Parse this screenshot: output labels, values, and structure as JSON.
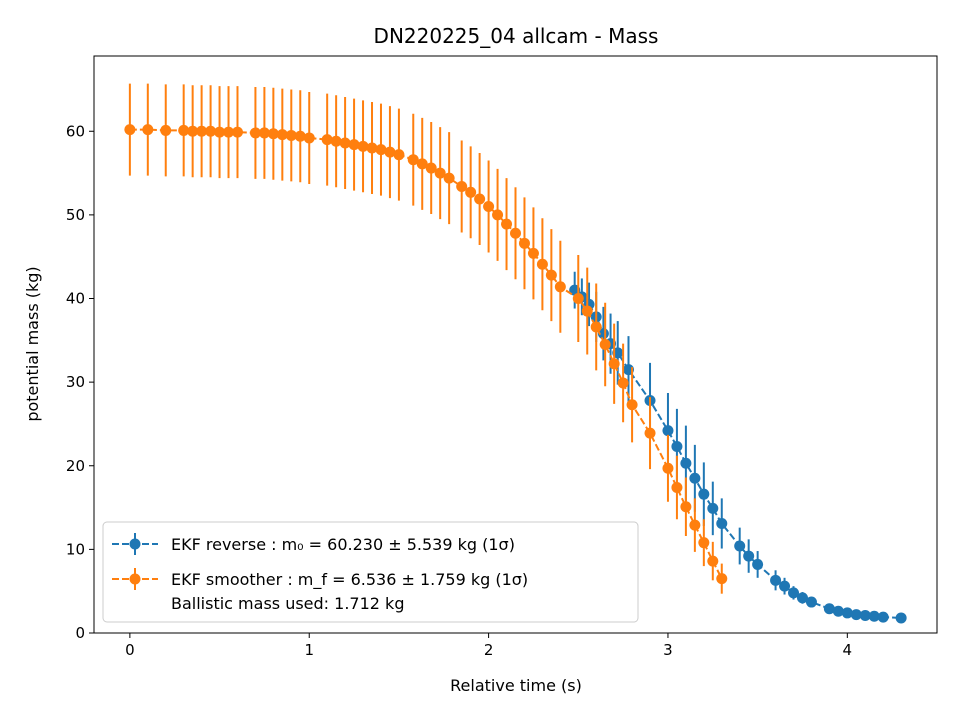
{
  "chart_data": {
    "type": "scatter",
    "title": "DN220225_04 allcam - Mass",
    "xlabel": "Relative time (s)",
    "ylabel": "potential mass (kg)",
    "xlim": [
      -0.2,
      4.5
    ],
    "ylim": [
      0,
      69
    ],
    "xticks": [
      0,
      1,
      2,
      3,
      4
    ],
    "yticks": [
      0,
      10,
      20,
      30,
      40,
      50,
      60
    ],
    "legend_position": "lower-left",
    "series": [
      {
        "legend_label": "EKF reverse : m₀ =  60.230 ± 5.539 kg (1σ)",
        "color": "#1f77b4",
        "linestyle": "dashed",
        "points": [
          [
            2.48,
            41.0,
            2.2
          ],
          [
            2.52,
            40.2,
            2.2
          ],
          [
            2.56,
            39.3,
            2.6
          ],
          [
            2.6,
            37.8,
            3.0
          ],
          [
            2.64,
            35.8,
            3.2
          ],
          [
            2.68,
            34.6,
            3.6
          ],
          [
            2.72,
            33.5,
            3.8
          ],
          [
            2.78,
            31.5,
            4.0
          ],
          [
            2.9,
            27.8,
            4.5
          ],
          [
            3.0,
            24.2,
            4.5
          ],
          [
            3.05,
            22.3,
            4.5
          ],
          [
            3.1,
            20.3,
            4.5
          ],
          [
            3.15,
            18.5,
            4.0
          ],
          [
            3.2,
            16.6,
            3.8
          ],
          [
            3.25,
            14.9,
            3.2
          ],
          [
            3.3,
            13.1,
            3.0
          ],
          [
            3.4,
            10.4,
            2.2
          ],
          [
            3.45,
            9.2,
            2.0
          ],
          [
            3.5,
            8.2,
            1.6
          ],
          [
            3.6,
            6.3,
            1.2
          ],
          [
            3.65,
            5.6,
            1.0
          ],
          [
            3.7,
            4.8,
            0.8
          ],
          [
            3.75,
            4.2,
            0.7
          ],
          [
            3.8,
            3.7,
            0.6
          ],
          [
            3.9,
            2.9,
            0.5
          ],
          [
            3.95,
            2.6,
            0.4
          ],
          [
            4.0,
            2.4,
            0.4
          ],
          [
            4.05,
            2.2,
            0.3
          ],
          [
            4.1,
            2.1,
            0.3
          ],
          [
            4.15,
            2.0,
            0.3
          ],
          [
            4.2,
            1.9,
            0.3
          ],
          [
            4.3,
            1.8,
            0.2
          ]
        ]
      },
      {
        "legend_label": "EKF smoother : m_f =  6.536 ± 1.759 kg (1σ)",
        "color": "#ff7f0e",
        "linestyle": "dashed",
        "points": [
          [
            0.0,
            60.2,
            5.5
          ],
          [
            0.1,
            60.2,
            5.5
          ],
          [
            0.2,
            60.1,
            5.5
          ],
          [
            0.3,
            60.1,
            5.5
          ],
          [
            0.35,
            60.0,
            5.5
          ],
          [
            0.4,
            60.0,
            5.5
          ],
          [
            0.45,
            60.0,
            5.5
          ],
          [
            0.5,
            59.9,
            5.5
          ],
          [
            0.55,
            59.9,
            5.5
          ],
          [
            0.6,
            59.9,
            5.5
          ],
          [
            0.7,
            59.8,
            5.5
          ],
          [
            0.75,
            59.8,
            5.5
          ],
          [
            0.8,
            59.7,
            5.5
          ],
          [
            0.85,
            59.6,
            5.5
          ],
          [
            0.9,
            59.5,
            5.5
          ],
          [
            0.95,
            59.4,
            5.5
          ],
          [
            1.0,
            59.2,
            5.5
          ],
          [
            1.1,
            59.0,
            5.5
          ],
          [
            1.15,
            58.8,
            5.5
          ],
          [
            1.2,
            58.6,
            5.5
          ],
          [
            1.25,
            58.4,
            5.5
          ],
          [
            1.3,
            58.2,
            5.5
          ],
          [
            1.35,
            58.0,
            5.5
          ],
          [
            1.4,
            57.8,
            5.5
          ],
          [
            1.45,
            57.5,
            5.5
          ],
          [
            1.5,
            57.2,
            5.5
          ],
          [
            1.58,
            56.6,
            5.5
          ],
          [
            1.63,
            56.1,
            5.5
          ],
          [
            1.68,
            55.6,
            5.5
          ],
          [
            1.73,
            55.0,
            5.5
          ],
          [
            1.78,
            54.4,
            5.5
          ],
          [
            1.85,
            53.4,
            5.5
          ],
          [
            1.9,
            52.7,
            5.5
          ],
          [
            1.95,
            51.9,
            5.5
          ],
          [
            2.0,
            51.0,
            5.5
          ],
          [
            2.05,
            50.0,
            5.5
          ],
          [
            2.1,
            48.9,
            5.5
          ],
          [
            2.15,
            47.8,
            5.5
          ],
          [
            2.2,
            46.6,
            5.5
          ],
          [
            2.25,
            45.4,
            5.5
          ],
          [
            2.3,
            44.1,
            5.5
          ],
          [
            2.35,
            42.8,
            5.5
          ],
          [
            2.4,
            41.4,
            5.5
          ],
          [
            2.5,
            40.0,
            5.2
          ],
          [
            2.55,
            38.5,
            5.2
          ],
          [
            2.6,
            36.6,
            5.2
          ],
          [
            2.65,
            34.5,
            5.0
          ],
          [
            2.7,
            32.2,
            4.8
          ],
          [
            2.75,
            29.9,
            4.7
          ],
          [
            2.8,
            27.3,
            4.5
          ],
          [
            2.9,
            23.9,
            4.3
          ],
          [
            3.0,
            19.7,
            4.0
          ],
          [
            3.05,
            17.4,
            3.8
          ],
          [
            3.1,
            15.1,
            3.5
          ],
          [
            3.15,
            12.9,
            3.2
          ],
          [
            3.2,
            10.8,
            2.8
          ],
          [
            3.25,
            8.6,
            2.3
          ],
          [
            3.3,
            6.5,
            1.8
          ]
        ]
      }
    ],
    "legend_note": " Ballistic mass used: 1.712 kg"
  }
}
